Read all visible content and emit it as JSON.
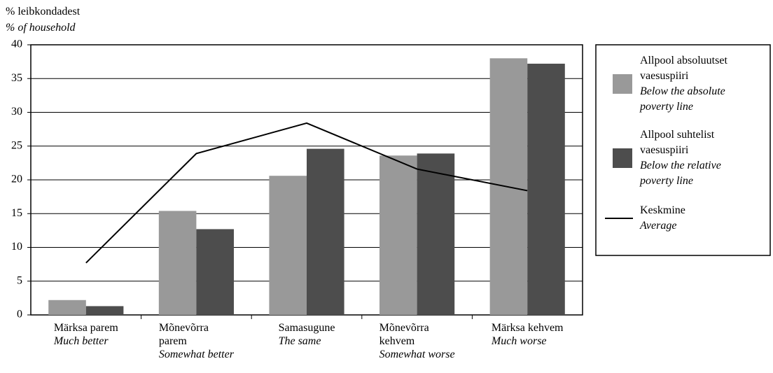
{
  "chart_data": {
    "type": "bar",
    "ylabel": "% leibkondadest",
    "ylabel_en": "% of household",
    "categories": [
      [
        "Märksa parem"
      ],
      [
        "Mõnevõrra",
        "parem"
      ],
      [
        "Samasugune"
      ],
      [
        "Mõnevõrra",
        "kehvem"
      ],
      [
        "Märksa kehvem"
      ]
    ],
    "categories_en": [
      "Much better",
      "Somewhat better",
      "The same",
      "Somewhat worse",
      "Much worse"
    ],
    "series": [
      {
        "name": "Allpool absoluutset vaesuspiiri",
        "name_en": "Below the absolute poverty line",
        "type": "bar",
        "color": "#999999",
        "values": [
          2.2,
          15.4,
          20.6,
          23.6,
          38.0
        ]
      },
      {
        "name": "Allpool suhtelist vaesuspiiri",
        "name_en": "Below the relative poverty line",
        "type": "bar",
        "color": "#4d4d4d",
        "values": [
          1.3,
          12.7,
          24.6,
          23.9,
          37.2
        ]
      },
      {
        "name": "Keskmine",
        "name_en": "Average",
        "type": "line",
        "color": "#000000",
        "values": [
          7.7,
          23.9,
          28.4,
          21.6,
          18.4
        ]
      }
    ],
    "ylim": [
      0,
      40
    ],
    "yticks": [
      0,
      5,
      10,
      15,
      20,
      25,
      30,
      35,
      40
    ],
    "grid": true,
    "legend": "right"
  }
}
